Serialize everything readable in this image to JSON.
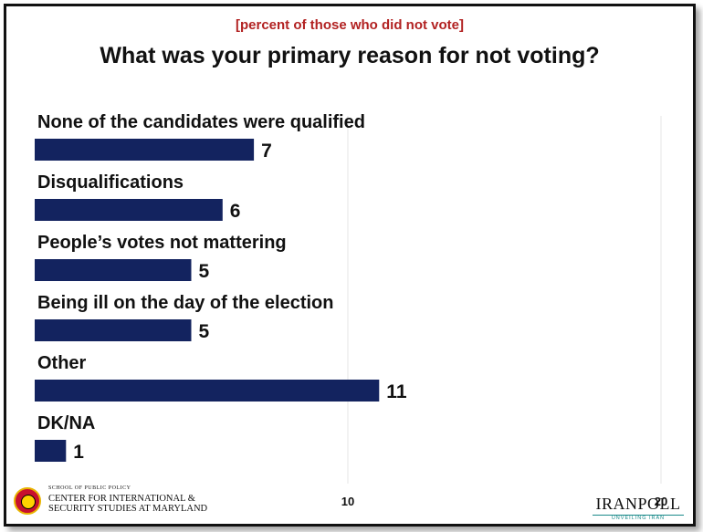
{
  "chart_data": {
    "type": "bar",
    "orientation": "horizontal",
    "subtitle": "[percent of those who did not vote]",
    "title": "What was your primary reason for not voting?",
    "categories": [
      "None of the candidates were qualified",
      "Disqualifications",
      "People’s votes not mattering",
      "Being ill on the day of the election",
      "Other",
      "DK/NA"
    ],
    "values": [
      7,
      6,
      5,
      5,
      11,
      1
    ],
    "data_labels": [
      "7",
      "6",
      "5",
      "5",
      "11",
      "1"
    ],
    "xlim": [
      0,
      20
    ],
    "x_ticks": [
      10,
      20
    ],
    "x_tick_labels": [
      "10",
      "20"
    ],
    "grid": true,
    "bar_color": "#13235f",
    "legend": "none"
  },
  "footer": {
    "left_logo": {
      "line1": "SCHOOL OF PUBLIC POLICY",
      "line2": "CENTER FOR INTERNATIONAL &",
      "line3": "SECURITY STUDIES AT MARYLAND"
    },
    "right_logo": {
      "brand": "IRANPOLL",
      "tagline": "UNVEILING IRAN"
    }
  },
  "colors": {
    "subtitle": "#b22222",
    "title": "#111111",
    "gridline": "#e6e6e6"
  }
}
